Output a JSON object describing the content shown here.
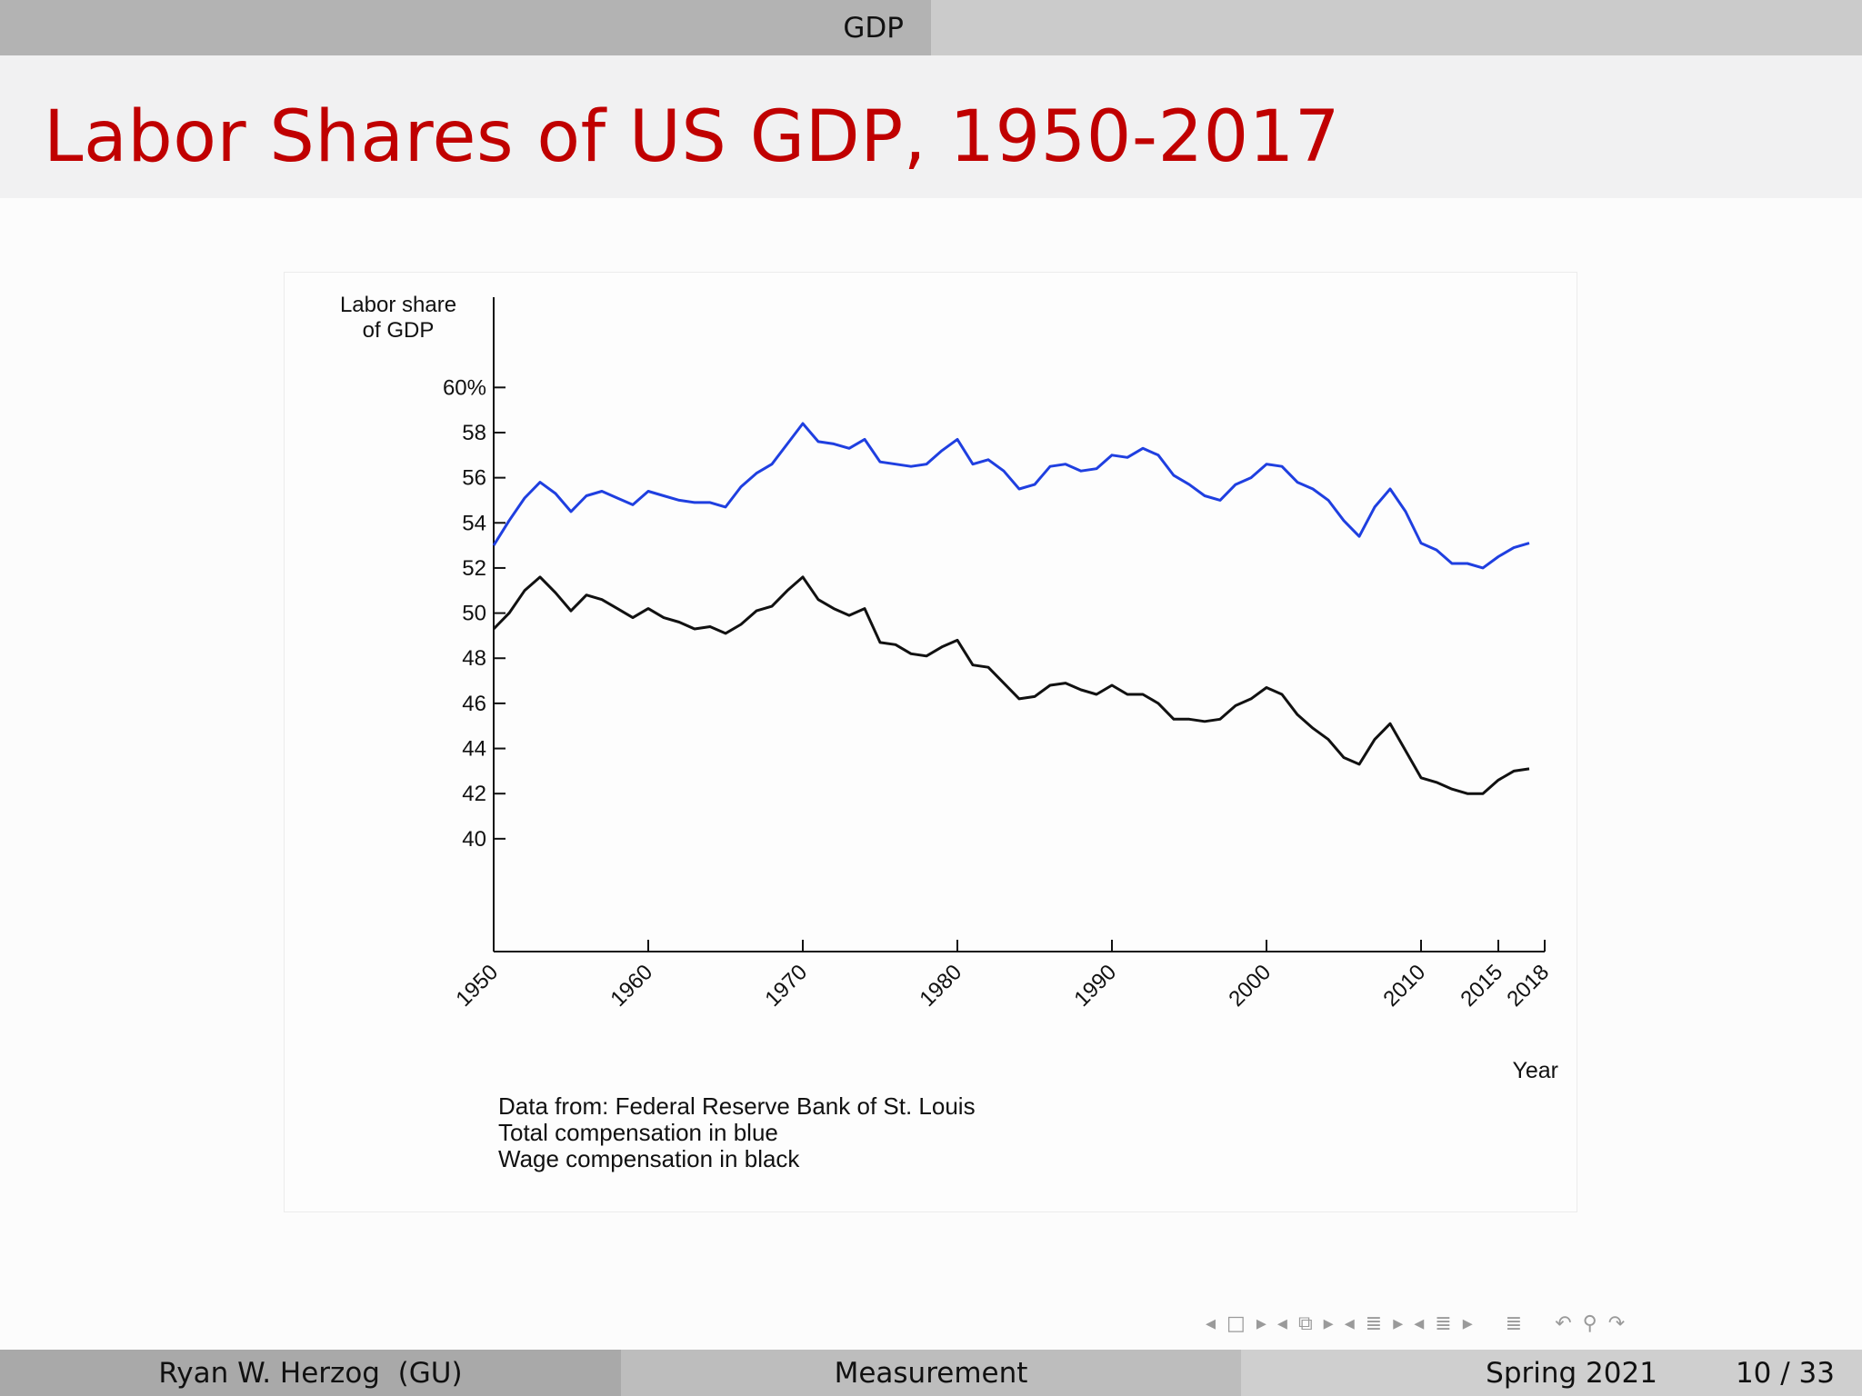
{
  "header": {
    "section": "GDP"
  },
  "slide": {
    "title": "Labor Shares of US GDP, 1950-2017"
  },
  "footnotes": [
    "Data from: Federal Reserve Bank of St. Louis",
    "Total compensation in blue",
    "Wage compensation in black"
  ],
  "footer": {
    "author": "Ryan W. Herzog  (GU)",
    "topic": "Measurement",
    "term": "Spring 2021",
    "page": "10 / 33"
  },
  "colors": {
    "title": "#c00000",
    "total": "#1f3fe0",
    "wage": "#111111"
  },
  "nav_icons": [
    "arrow-left-icon",
    "frame-icon",
    "arrow-right-icon",
    "arrow-left-icon",
    "subsection-icon",
    "arrow-right-icon",
    "arrow-left-icon",
    "section-icon",
    "arrow-right-icon",
    "arrow-left-icon",
    "list-icon",
    "arrow-right-icon",
    "align-icon",
    "undo-icon",
    "search-icon",
    "redo-icon"
  ],
  "chart_data": {
    "type": "line",
    "title": "",
    "ylabel": [
      "Labor share",
      "of GDP"
    ],
    "xlabel": "Year",
    "ylim": [
      35,
      64
    ],
    "xlim": [
      1950,
      2018
    ],
    "yticks": [
      {
        "value": 60,
        "label": "60%"
      },
      {
        "value": 58,
        "label": "58"
      },
      {
        "value": 56,
        "label": "56"
      },
      {
        "value": 54,
        "label": "54"
      },
      {
        "value": 52,
        "label": "52"
      },
      {
        "value": 50,
        "label": "50"
      },
      {
        "value": 48,
        "label": "48"
      },
      {
        "value": 46,
        "label": "46"
      },
      {
        "value": 44,
        "label": "44"
      },
      {
        "value": 42,
        "label": "42"
      },
      {
        "value": 40,
        "label": "40"
      }
    ],
    "xticks": [
      {
        "value": 1950,
        "label": "1950"
      },
      {
        "value": 1960,
        "label": "1960"
      },
      {
        "value": 1970,
        "label": "1970"
      },
      {
        "value": 1980,
        "label": "1980"
      },
      {
        "value": 1990,
        "label": "1990"
      },
      {
        "value": 2000,
        "label": "2000"
      },
      {
        "value": 2010,
        "label": "2010"
      },
      {
        "value": 2015,
        "label": "2015"
      },
      {
        "value": 2018,
        "label": "2018"
      }
    ],
    "grid": false,
    "legend": "none",
    "x": [
      1950,
      1951,
      1952,
      1953,
      1954,
      1955,
      1956,
      1957,
      1958,
      1959,
      1960,
      1961,
      1962,
      1963,
      1964,
      1965,
      1966,
      1967,
      1968,
      1969,
      1970,
      1971,
      1972,
      1973,
      1974,
      1975,
      1976,
      1977,
      1978,
      1979,
      1980,
      1981,
      1982,
      1983,
      1984,
      1985,
      1986,
      1987,
      1988,
      1989,
      1990,
      1991,
      1992,
      1993,
      1994,
      1995,
      1996,
      1997,
      1998,
      1999,
      2000,
      2001,
      2002,
      2003,
      2004,
      2005,
      2006,
      2007,
      2008,
      2009,
      2010,
      2011,
      2012,
      2013,
      2014,
      2015,
      2016,
      2017
    ],
    "series": [
      {
        "color": "#1f3fe0",
        "values": [
          53.0,
          54.1,
          55.1,
          55.8,
          55.3,
          54.5,
          55.2,
          55.4,
          55.1,
          54.8,
          55.4,
          55.2,
          55.0,
          54.9,
          54.9,
          54.7,
          55.6,
          56.2,
          56.6,
          57.5,
          58.4,
          57.6,
          57.5,
          57.3,
          57.7,
          56.7,
          56.6,
          56.5,
          56.6,
          57.2,
          57.7,
          56.6,
          56.8,
          56.3,
          55.5,
          55.7,
          56.5,
          56.6,
          56.3,
          56.4,
          57.0,
          56.9,
          57.3,
          57.0,
          56.1,
          55.7,
          55.2,
          55.0,
          55.7,
          56.0,
          56.6,
          56.5,
          55.8,
          55.5,
          55.0,
          54.1,
          53.4,
          54.7,
          55.5,
          54.5,
          53.1,
          52.8,
          52.2,
          52.2,
          52.0,
          52.5,
          52.9,
          53.1
        ]
      },
      {
        "color": "#111111",
        "values": [
          49.3,
          50.0,
          51.0,
          51.6,
          50.9,
          50.1,
          50.8,
          50.6,
          50.2,
          49.8,
          50.2,
          49.8,
          49.6,
          49.3,
          49.4,
          49.1,
          49.5,
          50.1,
          50.3,
          51.0,
          51.6,
          50.6,
          50.2,
          49.9,
          50.2,
          48.7,
          48.6,
          48.2,
          48.1,
          48.5,
          48.8,
          47.7,
          47.6,
          46.9,
          46.2,
          46.3,
          46.8,
          46.9,
          46.6,
          46.4,
          46.8,
          46.4,
          46.4,
          46.0,
          45.3,
          45.3,
          45.2,
          45.3,
          45.9,
          46.2,
          46.7,
          46.4,
          45.5,
          44.9,
          44.4,
          43.6,
          43.3,
          44.4,
          45.1,
          43.9,
          42.7,
          42.5,
          42.2,
          42.0,
          42.0,
          42.6,
          43.0,
          43.1
        ]
      }
    ]
  }
}
